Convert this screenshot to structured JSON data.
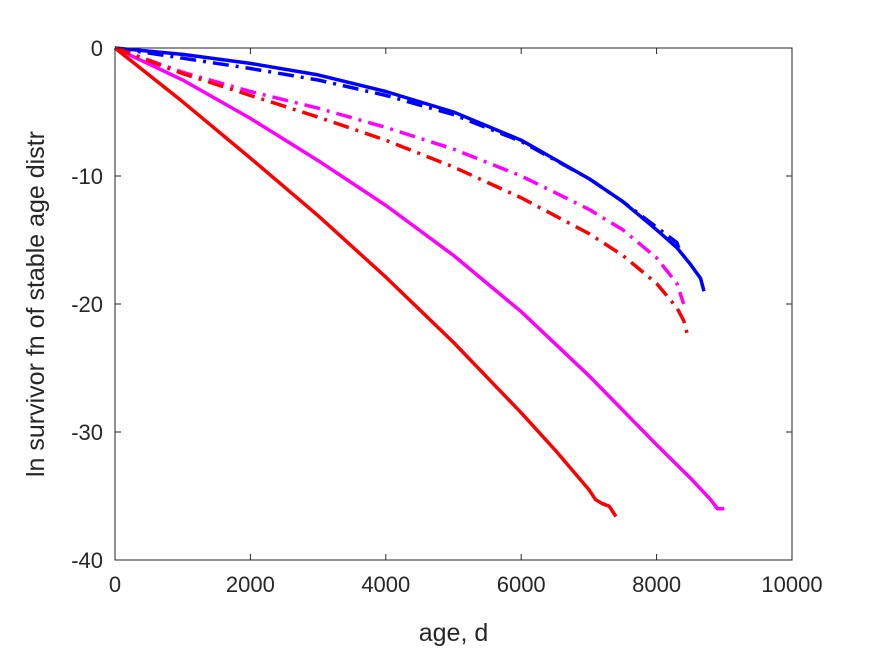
{
  "chart_data": {
    "type": "line",
    "title": "",
    "xlabel": "age, d",
    "ylabel": "ln survivor fn of stable age distr",
    "xlim": [
      0,
      10000
    ],
    "ylim": [
      -40,
      0
    ],
    "xticks": [
      0,
      2000,
      4000,
      6000,
      8000,
      10000
    ],
    "yticks": [
      0,
      -10,
      -20,
      -30,
      -40
    ],
    "xtick_labels": [
      "0",
      "2000",
      "4000",
      "6000",
      "8000",
      "10000"
    ],
    "ytick_labels": [
      "0",
      "-10",
      "-20",
      "-30",
      "-40"
    ],
    "grid": false,
    "legend": "none",
    "series": [
      {
        "color": "#0000ff",
        "style": "solid",
        "x": [
          0,
          1000,
          2000,
          3000,
          4000,
          5000,
          6000,
          7000,
          7500,
          8000,
          8300,
          8500,
          8650,
          8700
        ],
        "y": [
          0,
          -0.5,
          -1.2,
          -2.1,
          -3.4,
          -5.0,
          -7.2,
          -10.2,
          -12.0,
          -14.2,
          -15.6,
          -16.9,
          -18.0,
          -19.0
        ]
      },
      {
        "color": "#0000ff",
        "style": "dashdot",
        "x": [
          0,
          1000,
          2000,
          3000,
          4000,
          5000,
          6000,
          7000,
          7500,
          8000,
          8300,
          8350
        ],
        "y": [
          0,
          -0.8,
          -1.6,
          -2.5,
          -3.7,
          -5.2,
          -7.3,
          -10.2,
          -12.0,
          -14.0,
          -15.2,
          -16.0
        ]
      },
      {
        "color": "#ff00ff",
        "style": "solid",
        "x": [
          0,
          1000,
          2000,
          3000,
          4000,
          5000,
          6000,
          7000,
          8000,
          8500,
          8800,
          8900,
          9000
        ],
        "y": [
          0,
          -2.5,
          -5.5,
          -8.8,
          -12.3,
          -16.2,
          -20.6,
          -25.6,
          -31.0,
          -33.6,
          -35.3,
          -36.0,
          -36.0
        ]
      },
      {
        "color": "#ff00ff",
        "style": "dashdot",
        "x": [
          0,
          1000,
          2000,
          3000,
          4000,
          5000,
          6000,
          7000,
          7500,
          8000,
          8300,
          8400
        ],
        "y": [
          0,
          -1.9,
          -3.4,
          -4.7,
          -6.2,
          -7.9,
          -10.0,
          -12.6,
          -14.2,
          -16.4,
          -18.4,
          -20.0
        ]
      },
      {
        "color": "#ff0000",
        "style": "solid",
        "x": [
          0,
          1000,
          2000,
          3000,
          4000,
          5000,
          6000,
          6500,
          7000,
          7100,
          7200,
          7300,
          7400
        ],
        "y": [
          0,
          -4.2,
          -8.6,
          -13.1,
          -17.9,
          -23.0,
          -28.5,
          -31.4,
          -34.5,
          -35.3,
          -35.6,
          -35.8,
          -36.6
        ]
      },
      {
        "color": "#ff0000",
        "style": "dashdot",
        "x": [
          0,
          1000,
          2000,
          3000,
          4000,
          5000,
          6000,
          7000,
          7500,
          8000,
          8300,
          8400,
          8450
        ],
        "y": [
          0,
          -2.0,
          -3.7,
          -5.4,
          -7.2,
          -9.3,
          -11.7,
          -14.5,
          -16.2,
          -18.4,
          -20.3,
          -21.3,
          -22.3
        ]
      }
    ]
  }
}
